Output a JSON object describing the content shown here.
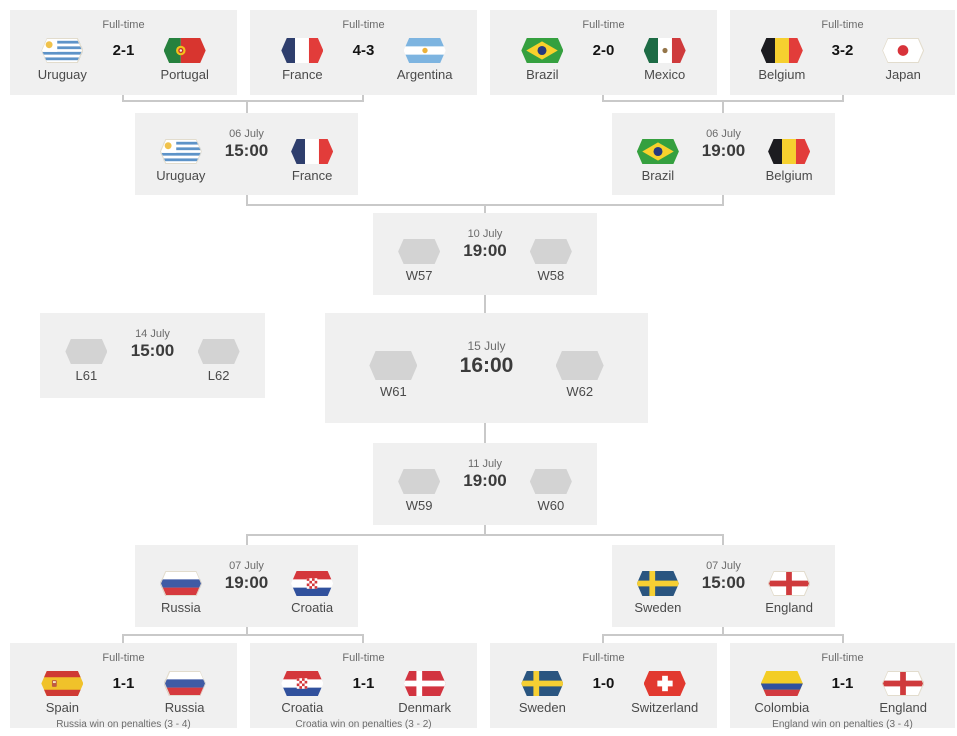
{
  "rounds": {
    "r16_top": [
      {
        "status": "Full-time",
        "score": "2-1",
        "home": {
          "name": "Uruguay",
          "flag": "uruguay"
        },
        "away": {
          "name": "Portugal",
          "flag": "portugal"
        }
      },
      {
        "status": "Full-time",
        "score": "4-3",
        "home": {
          "name": "France",
          "flag": "france"
        },
        "away": {
          "name": "Argentina",
          "flag": "argentina"
        }
      },
      {
        "status": "Full-time",
        "score": "2-0",
        "home": {
          "name": "Brazil",
          "flag": "brazil"
        },
        "away": {
          "name": "Mexico",
          "flag": "mexico"
        }
      },
      {
        "status": "Full-time",
        "score": "3-2",
        "home": {
          "name": "Belgium",
          "flag": "belgium"
        },
        "away": {
          "name": "Japan",
          "flag": "japan"
        }
      }
    ],
    "qf_top": [
      {
        "date": "06 July",
        "time": "15:00",
        "home": {
          "name": "Uruguay",
          "flag": "uruguay"
        },
        "away": {
          "name": "France",
          "flag": "france"
        }
      },
      {
        "date": "06 July",
        "time": "19:00",
        "home": {
          "name": "Brazil",
          "flag": "brazil"
        },
        "away": {
          "name": "Belgium",
          "flag": "belgium"
        }
      }
    ],
    "sf1": {
      "date": "10 July",
      "time": "19:00",
      "home": {
        "name": "W57",
        "flag": "placeholder"
      },
      "away": {
        "name": "W58",
        "flag": "placeholder"
      }
    },
    "third_place": {
      "date": "14 July",
      "time": "15:00",
      "home": {
        "name": "L61",
        "flag": "placeholder"
      },
      "away": {
        "name": "L62",
        "flag": "placeholder"
      }
    },
    "final": {
      "date": "15 July",
      "time": "16:00",
      "home": {
        "name": "W61",
        "flag": "placeholder"
      },
      "away": {
        "name": "W62",
        "flag": "placeholder"
      }
    },
    "sf2": {
      "date": "11 July",
      "time": "19:00",
      "home": {
        "name": "W59",
        "flag": "placeholder"
      },
      "away": {
        "name": "W60",
        "flag": "placeholder"
      }
    },
    "qf_bottom": [
      {
        "date": "07 July",
        "time": "19:00",
        "home": {
          "name": "Russia",
          "flag": "russia"
        },
        "away": {
          "name": "Croatia",
          "flag": "croatia"
        }
      },
      {
        "date": "07 July",
        "time": "15:00",
        "home": {
          "name": "Sweden",
          "flag": "sweden"
        },
        "away": {
          "name": "England",
          "flag": "england"
        }
      }
    ],
    "r16_bottom": [
      {
        "status": "Full-time",
        "score": "1-1",
        "note": "Russia win on penalties (3 - 4)",
        "home": {
          "name": "Spain",
          "flag": "spain"
        },
        "away": {
          "name": "Russia",
          "flag": "russia"
        }
      },
      {
        "status": "Full-time",
        "score": "1-1",
        "note": "Croatia win on penalties (3 - 2)",
        "home": {
          "name": "Croatia",
          "flag": "croatia"
        },
        "away": {
          "name": "Denmark",
          "flag": "denmark"
        }
      },
      {
        "status": "Full-time",
        "score": "1-0",
        "note": "",
        "home": {
          "name": "Sweden",
          "flag": "sweden"
        },
        "away": {
          "name": "Switzerland",
          "flag": "switzerland"
        }
      },
      {
        "status": "Full-time",
        "score": "1-1",
        "note": "England win on penalties (3 - 4)",
        "home": {
          "name": "Colombia",
          "flag": "colombia"
        },
        "away": {
          "name": "England",
          "flag": "england"
        }
      }
    ]
  },
  "colors": {
    "box_bg": "#f0f0f0",
    "connector": "#c9c9c9",
    "score_text": "#141414",
    "team_text": "#4a4a4a",
    "muted_text": "#6b6b6b",
    "placeholder_flag": "#d3d3d3"
  }
}
